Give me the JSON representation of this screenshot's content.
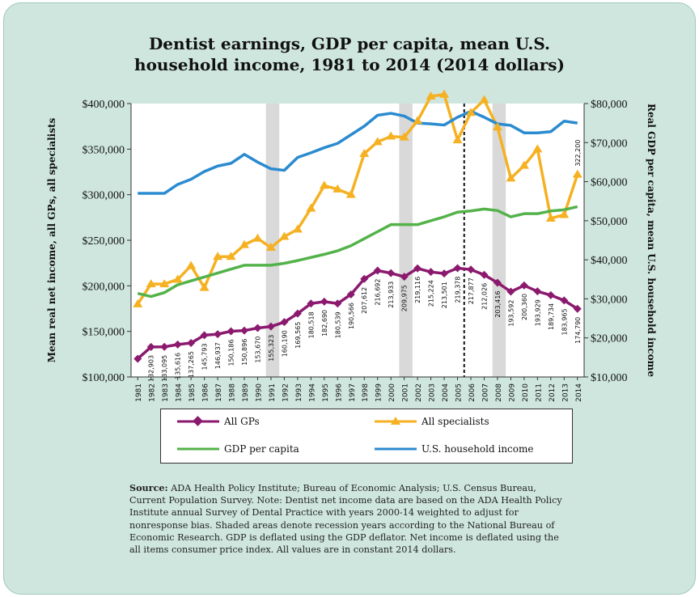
{
  "title_line1": "Dentist earnings, GDP per capita, mean U.S.",
  "title_line2": "household income, 1981 to 2014 (2014 dollars)",
  "colors": {
    "gp": "#8b1a6e",
    "specialists": "#f5b122",
    "gdp": "#54b24a",
    "household": "#2a8bd0",
    "recession": "#d9d9d9",
    "background": "#cfe6df"
  },
  "legend": {
    "gp": "All GPs",
    "specialists": "All specialists",
    "gdp": "GDP per capita",
    "household": "U.S. household income"
  },
  "source_label": "Source:",
  "source_text": "ADA Health Policy Institute; Bureau of Economic Analysis; U.S. Census Bureau, Current Population Survey. Note: Dentist net income data are based on the ADA Health Policy Institute annual Survey of Dental Practice with years 2000-14 weighted to adjust for nonresponse bias. Shaded areas denote recession years according to the National Bureau of Economic Research. GDP is deflated using the GDP deflator. Net income is deflated using the all items consumer price index. All values are in constant 2014 dollars.",
  "chart_data": {
    "type": "line",
    "x": [
      1981,
      1982,
      1983,
      1984,
      1985,
      1986,
      1987,
      1988,
      1989,
      1990,
      1991,
      1992,
      1993,
      1994,
      1995,
      1996,
      1997,
      1998,
      1999,
      2000,
      2001,
      2002,
      2003,
      2004,
      2005,
      2006,
      2007,
      2008,
      2009,
      2010,
      2011,
      2012,
      2013,
      2014
    ],
    "xlim": [
      1981,
      2014
    ],
    "ylabel_left": "Mean real net income, all GPs, all specialists",
    "ylabel_right": "Real GDP per capita, mean U.S. household income",
    "ylim_left": [
      100000,
      400000
    ],
    "ylim_right": [
      10000,
      80000
    ],
    "y_ticks_left": [
      "$100,000",
      "$150,000",
      "$200,000",
      "$250,000",
      "$300,000",
      "$350,000",
      "$400,000"
    ],
    "y_ticks_right": [
      "$10,000",
      "$20,000",
      "$30,000",
      "$40,000",
      "$50,000",
      "$60,000",
      "$70,000",
      "$80,000"
    ],
    "recession_shading": [
      [
        1991,
        1992
      ],
      [
        2001,
        2002
      ],
      [
        2008,
        2009
      ]
    ],
    "vertical_marker_x": 2005,
    "series": [
      {
        "name": "All GPs",
        "axis": "left",
        "values": [
          120000,
          132903,
          133095,
          135616,
          137265,
          145793,
          146937,
          150186,
          150896,
          153670,
          155323,
          160190,
          169565,
          180518,
          182690,
          180539,
          190566,
          207612,
          216692,
          213933,
          209975,
          219116,
          215224,
          213501,
          219378,
          217877,
          212026,
          203416,
          193592,
          200360,
          193929,
          189734,
          183965,
          174790
        ],
        "labels": [
          "",
          "132,903",
          "133,095",
          "135,616",
          "137,265",
          "145,793",
          "146,937",
          "150,186",
          "150,896",
          "153,670",
          "155,323",
          "160,190",
          "169,565",
          "180,518",
          "182,690",
          "180,539",
          "190,566",
          "207,612",
          "216,692",
          "213,933",
          "209,975",
          "219,116",
          "215,224",
          "213,501",
          "219,378",
          "217,877",
          "212,026",
          "203,416",
          "193,592",
          "200,360",
          "193,929",
          "189,734",
          "183,965",
          "174,790"
        ]
      },
      {
        "name": "All specialists",
        "axis": "left",
        "values": [
          180000,
          202000,
          202000,
          207000,
          222000,
          198000,
          232000,
          232000,
          245000,
          252000,
          242000,
          254000,
          262000,
          285000,
          310000,
          306000,
          300000,
          345000,
          358000,
          364000,
          363000,
          381000,
          408000,
          410000,
          360000,
          390000,
          404000,
          374000,
          318000,
          332000,
          350000,
          274000,
          278000,
          322200
        ],
        "labels": [
          "",
          "",
          "",
          "",
          "",
          "",
          "",
          "",
          "",
          "",
          "",
          "",
          "",
          "",
          "",
          "",
          "",
          "",
          "",
          "",
          "",
          "",
          "",
          "",
          "",
          "",
          "",
          "",
          "",
          "",
          "",
          "",
          "",
          "322,200"
        ]
      },
      {
        "name": "GDP per capita",
        "axis": "right",
        "values": [
          31400,
          30600,
          31600,
          33600,
          34600,
          35600,
          36600,
          37600,
          38600,
          38600,
          38600,
          39100,
          39800,
          40600,
          41400,
          42300,
          43600,
          45400,
          47200,
          49000,
          49000,
          49000,
          50000,
          51000,
          52200,
          52500,
          53000,
          52600,
          51000,
          51800,
          51800,
          52500,
          52800,
          53600
        ]
      },
      {
        "name": "U.S. household income",
        "axis": "right",
        "values": [
          57000,
          57000,
          57000,
          59300,
          60600,
          62600,
          64000,
          64700,
          67000,
          65000,
          63300,
          62900,
          66200,
          67400,
          68700,
          69800,
          72000,
          74200,
          77000,
          77500,
          76800,
          75000,
          74800,
          74500,
          76500,
          78000,
          76500,
          74800,
          74400,
          72500,
          72500,
          72800,
          75500,
          75000
        ]
      }
    ]
  }
}
